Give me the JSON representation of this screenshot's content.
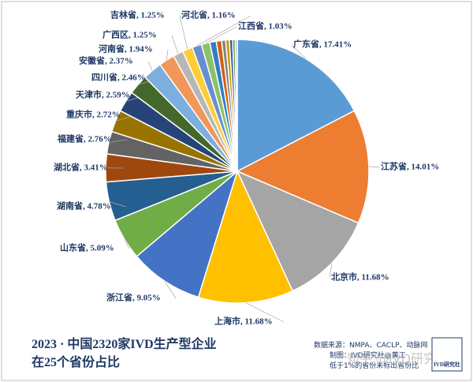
{
  "chart_data": {
    "type": "pie",
    "title": [
      "2023 · 中国2320家IVD生产型企业",
      "在25个省份占比"
    ],
    "values": [
      17.41,
      14.01,
      11.68,
      11.68,
      9.05,
      5.09,
      4.78,
      3.41,
      2.76,
      2.72,
      2.59,
      2.46,
      2.37,
      1.94,
      1.25,
      1.25,
      1.16,
      1.03,
      0.8,
      0.65,
      0.5,
      0.45,
      0.4,
      0.3,
      0.26
    ],
    "value_labels": [
      "广东省, 17.41%",
      "江苏省, 14.01%",
      "北京市, 11.68%",
      "上海市, 11.68%",
      "浙江省, 9.05%",
      "山东省, 5.09%",
      "湖南省, 4.78%",
      "湖北省, 3.41%",
      "福建省, 2.76%",
      "重庆市, 2.72%",
      "天津市, 2.59%",
      "四川省, 2.46%",
      "安徽省, 2.37%",
      "河南省, 1.94%",
      "广西区, 1.25%",
      "吉林省, 1.25%",
      "河北省, 1.16%",
      "江西省, 1.03%",
      null,
      null,
      null,
      null,
      null,
      null,
      null
    ],
    "colors": [
      "#5b9bd5",
      "#ed7d31",
      "#a5a5a5",
      "#ffc000",
      "#4472c4",
      "#70ad47",
      "#255e91",
      "#9e480e",
      "#636363",
      "#997300",
      "#264478",
      "#43682b",
      "#7cafdd",
      "#f1975a",
      "#b7b7b7",
      "#ffcd33",
      "#698ed0",
      "#8cc168",
      "#327dc2",
      "#d26012",
      "#848484",
      "#cc9a00",
      "#3a5da0",
      "#5a8a39",
      "#9dc3e6"
    ],
    "notes": [
      "数据来源：NMPA、CACLP、动脉网",
      "制图：IVD研究社@黄工",
      "低于1%的省份未标出省份比"
    ],
    "watermark": "知乎 @IVD研究社",
    "logo": "IVD研究社"
  }
}
